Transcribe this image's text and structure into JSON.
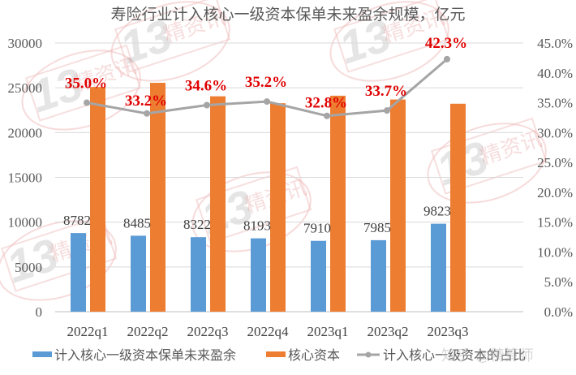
{
  "chart_data": {
    "type": "bar",
    "title": "寿险行业计入核心一级资本保单未来盈余规模，亿元",
    "categories": [
      "2022q1",
      "2022q2",
      "2022q3",
      "2022q4",
      "2023q1",
      "2023q2",
      "2023q3"
    ],
    "series": [
      {
        "name": "计入核心一级资本保单未来盈余",
        "type": "bar",
        "axis": "left",
        "color": "#5b9bd5",
        "values": [
          8782,
          8485,
          8322,
          8193,
          7910,
          7985,
          9823
        ],
        "labels": [
          "8782",
          "8485",
          "8322",
          "8193",
          "7910",
          "7985",
          "9823"
        ]
      },
      {
        "name": "核心资本",
        "type": "bar",
        "axis": "left",
        "color": "#ed7d31",
        "values": [
          25091,
          25557,
          24052,
          23276,
          24116,
          23694,
          23222
        ]
      },
      {
        "name": "计入核心一级资本的占比",
        "type": "line",
        "axis": "right",
        "color": "#a5a5a5",
        "values": [
          35.0,
          33.2,
          34.6,
          35.2,
          32.8,
          33.7,
          42.3
        ],
        "labels": [
          "35.0%",
          "33.2%",
          "34.6%",
          "35.2%",
          "32.8%",
          "33.7%",
          "42.3%"
        ],
        "label_color": "#e00000"
      }
    ],
    "left_axis": {
      "ylim": [
        0,
        30000
      ],
      "ticks": [
        "0",
        "5000",
        "10000",
        "15000",
        "20000",
        "25000",
        "30000"
      ]
    },
    "right_axis": {
      "ylim": [
        0,
        45
      ],
      "ticks": [
        "0.0%",
        "5.0%",
        "10.0%",
        "15.0%",
        "20.0%",
        "25.0%",
        "30.0%",
        "35.0%",
        "40.0%",
        "45.0%"
      ]
    },
    "xlabel": "",
    "ylabel": "",
    "grid": true,
    "legend_position": "bottom"
  },
  "watermark": {
    "brand": "13精资讯",
    "number": "13",
    "text": "精资讯",
    "overlay": "知乎 @精算师"
  }
}
